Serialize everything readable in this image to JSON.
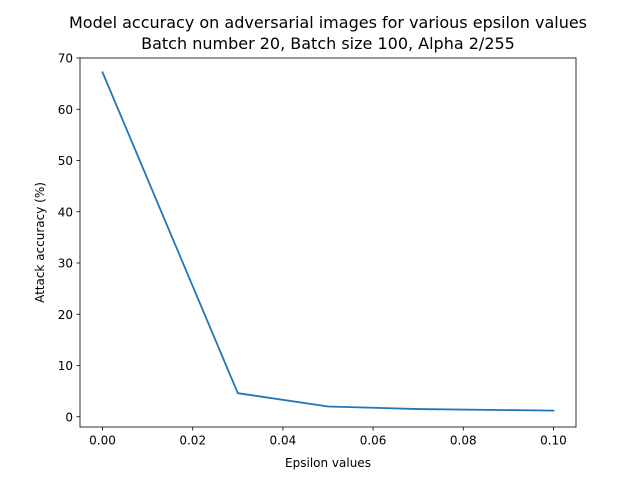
{
  "chart_data": {
    "type": "line",
    "title": "Model accuracy on adversarial images for various epsilon values",
    "subtitle": "Batch number 20, Batch size 100, Alpha 2/255",
    "xlabel": "Epsilon values",
    "ylabel": "Attack accuracy (%)",
    "xlim": [
      -0.005,
      0.105
    ],
    "ylim": [
      -2.0,
      70.0
    ],
    "x_ticks": [
      0.0,
      0.02,
      0.04,
      0.06,
      0.08,
      0.1
    ],
    "x_tick_labels": [
      "0.00",
      "0.02",
      "0.04",
      "0.06",
      "0.08",
      "0.10"
    ],
    "y_ticks": [
      0,
      10,
      20,
      30,
      40,
      50,
      60,
      70
    ],
    "y_tick_labels": [
      "0",
      "10",
      "20",
      "30",
      "40",
      "50",
      "60",
      "70"
    ],
    "grid": false,
    "line_color": "#1f77b4",
    "series": [
      {
        "x": [
          0.0,
          0.03,
          0.05,
          0.07,
          0.1
        ],
        "y": [
          67.2,
          4.6,
          2.0,
          1.5,
          1.2
        ]
      }
    ]
  }
}
